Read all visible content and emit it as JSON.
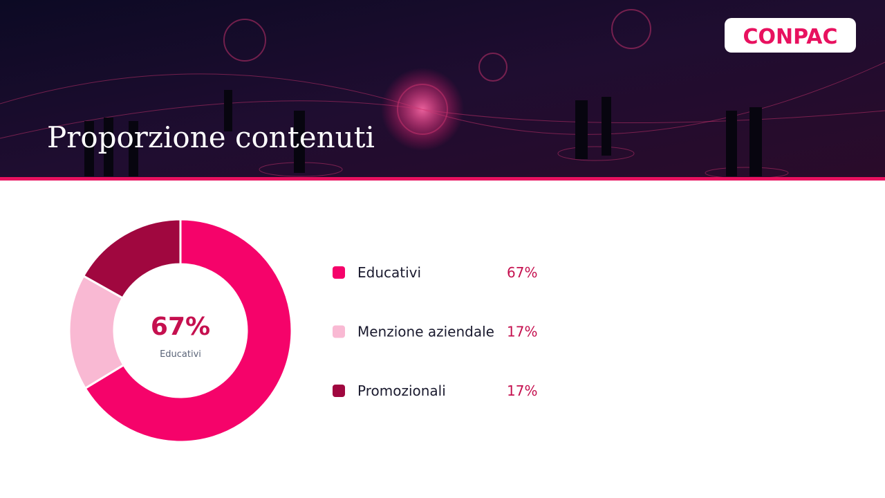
{
  "logo": "CONPAC",
  "chart_data": {
    "type": "pie",
    "title": "Proporzione contenuti",
    "categories": [
      "Educativi",
      "Menzione aziendale",
      "Promozionali"
    ],
    "values": [
      67,
      17,
      17
    ],
    "value_labels": [
      "67%",
      "17%",
      "17%"
    ],
    "colors": [
      "#f5036a",
      "#f9b9d3",
      "#a0073f"
    ]
  }
}
